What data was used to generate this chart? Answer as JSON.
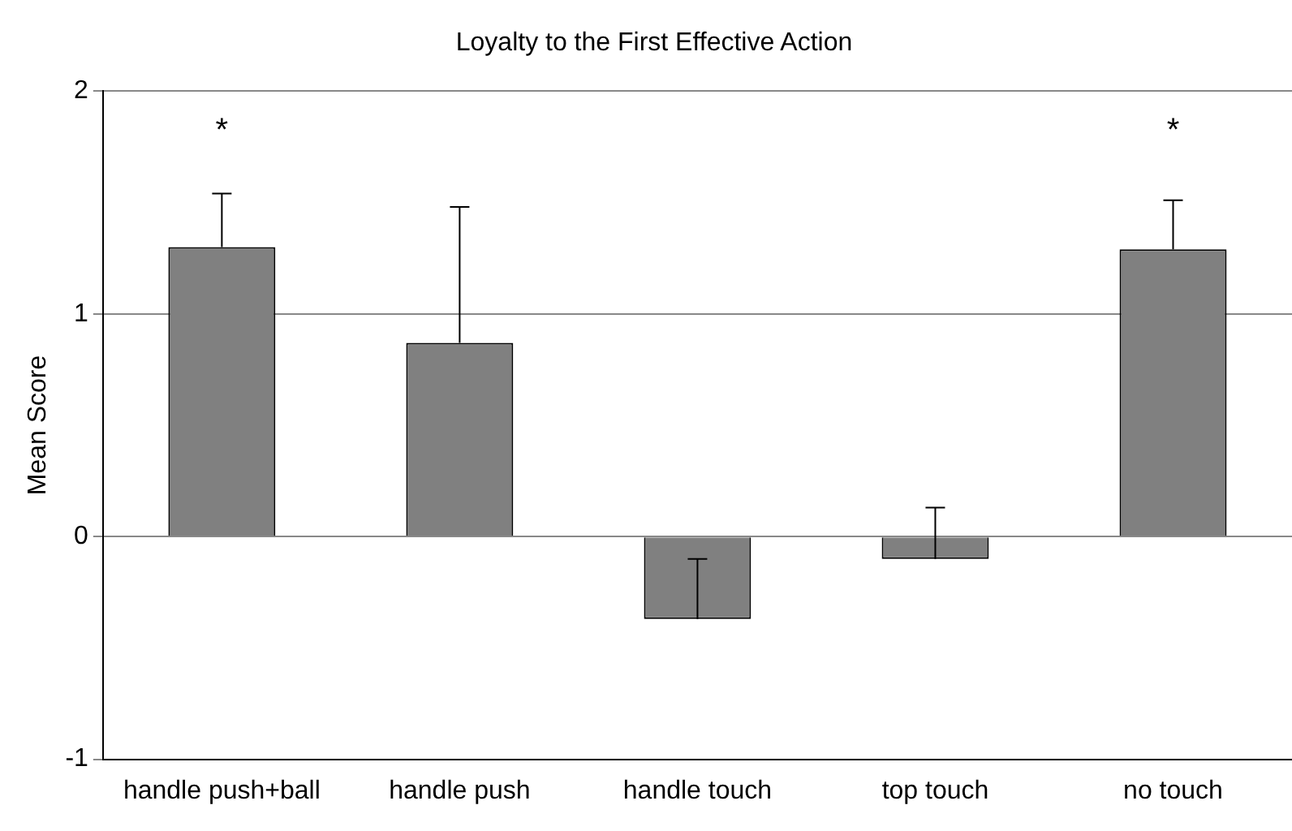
{
  "chart_data": {
    "type": "bar",
    "title": "Loyalty to the First Effective Action",
    "ylabel": "Mean Score",
    "categories": [
      "handle push+ball",
      "handle push",
      "handle touch",
      "top touch",
      "no touch"
    ],
    "values": [
      1.3,
      0.87,
      -0.37,
      -0.1,
      1.29
    ],
    "errors": [
      [
        1.3,
        1.54
      ],
      [
        0.87,
        1.48
      ],
      [
        -0.37,
        -0.1
      ],
      [
        -0.1,
        0.13
      ],
      [
        1.29,
        1.51
      ]
    ],
    "color": "#808080",
    "ylim": [
      -1,
      2
    ],
    "yticks": [
      -1,
      0,
      1,
      2
    ],
    "grid": "y",
    "annotations": [
      "*",
      "*"
    ]
  }
}
